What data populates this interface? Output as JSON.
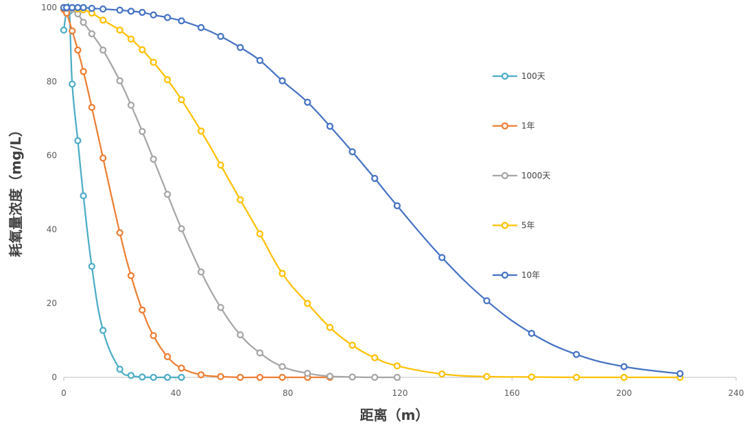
{
  "chart_data": {
    "type": "scatter",
    "title": "",
    "xlabel": "距离（m）",
    "ylabel": "耗氧量浓度（mg/L）",
    "xlim": [
      0,
      240
    ],
    "ylim": [
      0,
      100
    ],
    "xticks": [
      0,
      40,
      80,
      120,
      160,
      200,
      240
    ],
    "yticks": [
      0,
      20,
      40,
      60,
      80,
      100
    ],
    "grid": false,
    "legend_position": "right",
    "series": [
      {
        "name": "100天",
        "color": "#4bacc6",
        "points": [
          [
            0,
            93.9
          ],
          [
            1,
            99
          ],
          [
            2,
            99
          ],
          [
            3,
            79.3
          ],
          [
            5,
            64
          ],
          [
            7,
            49.1
          ],
          [
            10,
            30
          ],
          [
            14,
            12.7
          ],
          [
            20,
            2.2
          ],
          [
            24,
            0.5
          ],
          [
            28,
            0.1
          ],
          [
            32,
            0
          ],
          [
            37,
            0
          ],
          [
            42,
            0
          ]
        ]
      },
      {
        "name": "1年",
        "color": "#ed7d31",
        "points": [
          [
            0,
            99.5
          ],
          [
            1,
            98.5
          ],
          [
            3,
            93.7
          ],
          [
            5,
            88.5
          ],
          [
            7,
            82.7
          ],
          [
            10,
            73
          ],
          [
            14,
            59.3
          ],
          [
            20,
            39.1
          ],
          [
            24,
            27.5
          ],
          [
            28,
            18.2
          ],
          [
            32,
            11.3
          ],
          [
            37,
            5.6
          ],
          [
            42,
            2.5
          ],
          [
            49,
            0.7
          ],
          [
            56,
            0.2
          ],
          [
            63,
            0
          ],
          [
            70,
            0
          ],
          [
            78,
            0
          ],
          [
            87,
            0
          ],
          [
            95,
            0
          ]
        ]
      },
      {
        "name": "1000天",
        "color": "#a5a5a5",
        "points": [
          [
            0,
            100
          ],
          [
            1,
            99.8
          ],
          [
            3,
            99.5
          ],
          [
            5,
            98.3
          ],
          [
            7,
            96
          ],
          [
            10,
            92.9
          ],
          [
            14,
            88.5
          ],
          [
            20,
            80.2
          ],
          [
            24,
            73.6
          ],
          [
            28,
            66.5
          ],
          [
            32,
            59
          ],
          [
            37,
            49.5
          ],
          [
            42,
            40.2
          ],
          [
            49,
            28.5
          ],
          [
            56,
            18.9
          ],
          [
            63,
            11.5
          ],
          [
            70,
            6.6
          ],
          [
            78,
            2.9
          ],
          [
            87,
            1.1
          ],
          [
            95,
            0.3
          ],
          [
            103,
            0.1
          ],
          [
            111,
            0
          ],
          [
            119,
            0
          ]
        ]
      },
      {
        "name": "5年",
        "color": "#ffc000",
        "points": [
          [
            0,
            100
          ],
          [
            1,
            100
          ],
          [
            3,
            100
          ],
          [
            5,
            99.6
          ],
          [
            7,
            99.4
          ],
          [
            10,
            98.5
          ],
          [
            14,
            96.6
          ],
          [
            20,
            93.9
          ],
          [
            24,
            91.5
          ],
          [
            28,
            88.6
          ],
          [
            32,
            85.2
          ],
          [
            37,
            80.5
          ],
          [
            42,
            75.1
          ],
          [
            49,
            66.6
          ],
          [
            56,
            57.4
          ],
          [
            63,
            48
          ],
          [
            70,
            38.8
          ],
          [
            78,
            28.1
          ],
          [
            87,
            20
          ],
          [
            95,
            13.5
          ],
          [
            103,
            8.7
          ],
          [
            111,
            5.3
          ],
          [
            119,
            3.1
          ],
          [
            135,
            0.9
          ],
          [
            151,
            0.2
          ],
          [
            167,
            0.1
          ],
          [
            183,
            0
          ],
          [
            200,
            0
          ],
          [
            220,
            0
          ]
        ]
      },
      {
        "name": "10年",
        "color": "#4472c4",
        "points": [
          [
            0,
            100
          ],
          [
            1,
            100
          ],
          [
            3,
            100
          ],
          [
            5,
            100
          ],
          [
            7,
            100
          ],
          [
            10,
            99.8
          ],
          [
            14,
            99.6
          ],
          [
            20,
            99.3
          ],
          [
            24,
            99
          ],
          [
            28,
            98.7
          ],
          [
            32,
            98
          ],
          [
            37,
            97.3
          ],
          [
            42,
            96.4
          ],
          [
            49,
            94.6
          ],
          [
            56,
            92.2
          ],
          [
            63,
            89.2
          ],
          [
            70,
            85.7
          ],
          [
            78,
            80.2
          ],
          [
            87,
            74.4
          ],
          [
            95,
            67.9
          ],
          [
            103,
            61
          ],
          [
            111,
            53.8
          ],
          [
            119,
            46.4
          ],
          [
            135,
            32.4
          ],
          [
            151,
            20.7
          ],
          [
            167,
            11.9
          ],
          [
            183,
            6.2
          ],
          [
            200,
            2.9
          ],
          [
            220,
            1
          ]
        ]
      }
    ]
  }
}
